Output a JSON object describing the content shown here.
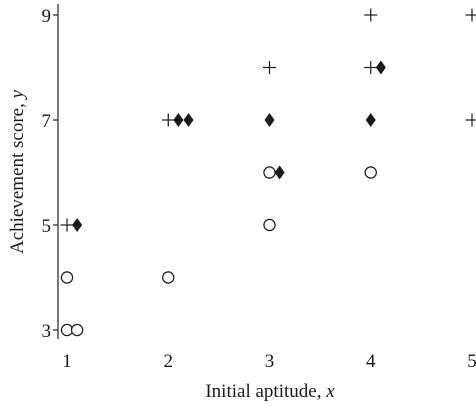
{
  "chart_data": {
    "type": "scatter",
    "xlabel": "Initial aptitude, ",
    "xlabel_var": "x",
    "ylabel": "Achievement score, ",
    "ylabel_var": "y",
    "xlim": [
      1,
      5
    ],
    "ylim": [
      3,
      9
    ],
    "x_ticks": [
      1,
      2,
      3,
      4,
      5
    ],
    "y_ticks": [
      3,
      5,
      7,
      9
    ],
    "grid": false,
    "series": [
      {
        "marker": "plus",
        "points": [
          {
            "x": 1,
            "y": 5
          },
          {
            "x": 2,
            "y": 7
          },
          {
            "x": 3,
            "y": 8
          },
          {
            "x": 4,
            "y": 8
          },
          {
            "x": 4,
            "y": 9
          },
          {
            "x": 5,
            "y": 7
          },
          {
            "x": 5,
            "y": 9
          }
        ]
      },
      {
        "marker": "diamond",
        "points": [
          {
            "x": 1.1,
            "y": 5
          },
          {
            "x": 2.1,
            "y": 7
          },
          {
            "x": 2.2,
            "y": 7
          },
          {
            "x": 3,
            "y": 7
          },
          {
            "x": 3.1,
            "y": 6
          },
          {
            "x": 4,
            "y": 7
          },
          {
            "x": 4.1,
            "y": 8
          }
        ]
      },
      {
        "marker": "circle",
        "points": [
          {
            "x": 1,
            "y": 4
          },
          {
            "x": 1,
            "y": 3
          },
          {
            "x": 1.1,
            "y": 3
          },
          {
            "x": 2,
            "y": 4
          },
          {
            "x": 3,
            "y": 6
          },
          {
            "x": 3,
            "y": 5
          },
          {
            "x": 4,
            "y": 6
          }
        ]
      }
    ],
    "colors": {
      "ink": "#1a1a1a",
      "circle_fill": "#ffffff"
    }
  }
}
